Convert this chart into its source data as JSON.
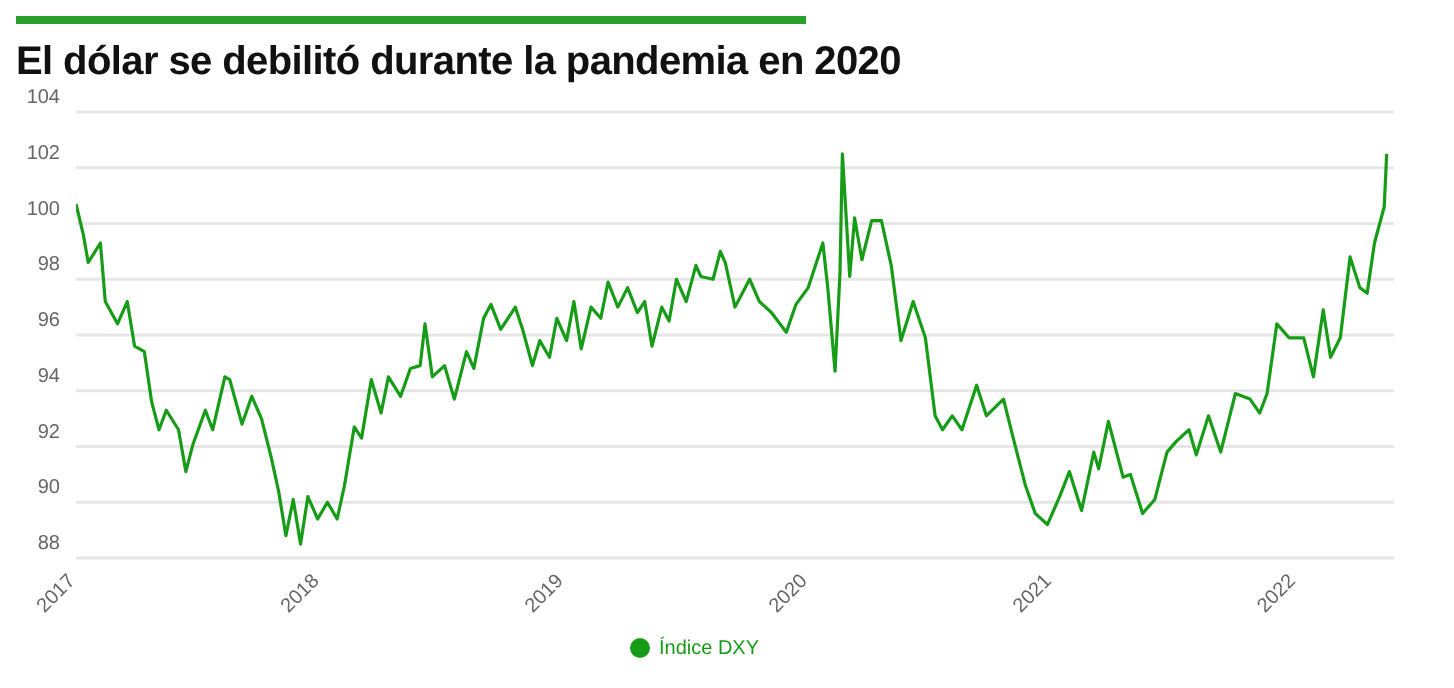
{
  "chart_data": {
    "type": "line",
    "title": "El dólar se debilitó durante la pandemia en 2020",
    "x": [
      2017.0,
      2017.03,
      2017.05,
      2017.1,
      2017.12,
      2017.17,
      2017.21,
      2017.24,
      2017.28,
      2017.31,
      2017.34,
      2017.37,
      2017.42,
      2017.45,
      2017.48,
      2017.53,
      2017.56,
      2017.61,
      2017.63,
      2017.68,
      2017.72,
      2017.76,
      2017.8,
      2017.83,
      2017.86,
      2017.89,
      2017.92,
      2017.95,
      2017.99,
      2018.03,
      2018.07,
      2018.1,
      2018.14,
      2018.17,
      2018.21,
      2018.25,
      2018.28,
      2018.33,
      2018.37,
      2018.41,
      2018.43,
      2018.46,
      2018.51,
      2018.55,
      2018.6,
      2018.63,
      2018.67,
      2018.7,
      2018.74,
      2018.8,
      2018.83,
      2018.87,
      2018.9,
      2018.94,
      2018.97,
      2019.01,
      2019.04,
      2019.07,
      2019.11,
      2019.15,
      2019.18,
      2019.22,
      2019.26,
      2019.3,
      2019.33,
      2019.36,
      2019.4,
      2019.43,
      2019.46,
      2019.5,
      2019.54,
      2019.56,
      2019.61,
      2019.64,
      2019.66,
      2019.7,
      2019.76,
      2019.8,
      2019.85,
      2019.91,
      2019.95,
      2020.0,
      2020.06,
      2020.08,
      2020.11,
      2020.13,
      2020.14,
      2020.17,
      2020.19,
      2020.22,
      2020.26,
      2020.3,
      2020.34,
      2020.38,
      2020.43,
      2020.48,
      2020.52,
      2020.55,
      2020.59,
      2020.63,
      2020.69,
      2020.73,
      2020.8,
      2020.84,
      2020.89,
      2020.93,
      2020.98,
      2021.03,
      2021.07,
      2021.12,
      2021.17,
      2021.19,
      2021.23,
      2021.29,
      2021.32,
      2021.37,
      2021.42,
      2021.47,
      2021.51,
      2021.56,
      2021.59,
      2021.64,
      2021.69,
      2021.75,
      2021.81,
      2021.85,
      2021.88,
      2021.92,
      2021.97,
      2022.03,
      2022.07,
      2022.11,
      2022.14,
      2022.18,
      2022.22,
      2022.26,
      2022.29,
      2022.32,
      2022.36,
      2022.37
    ],
    "series": [
      {
        "name": "Índice DXY",
        "color": "#179c17",
        "values": [
          100.7,
          99.6,
          98.6,
          99.3,
          97.2,
          96.4,
          97.2,
          95.6,
          95.4,
          93.6,
          92.6,
          93.3,
          92.6,
          91.1,
          92.1,
          93.3,
          92.6,
          94.5,
          94.4,
          92.8,
          93.8,
          93.0,
          91.6,
          90.4,
          88.8,
          90.1,
          88.5,
          90.2,
          89.4,
          90.0,
          89.4,
          90.6,
          92.7,
          92.3,
          94.4,
          93.2,
          94.5,
          93.8,
          94.8,
          94.9,
          96.4,
          94.5,
          94.9,
          93.7,
          95.4,
          94.8,
          96.6,
          97.1,
          96.2,
          97.0,
          96.2,
          94.9,
          95.8,
          95.2,
          96.6,
          95.8,
          97.2,
          95.5,
          97.0,
          96.6,
          97.9,
          97.0,
          97.7,
          96.8,
          97.2,
          95.6,
          97.0,
          96.5,
          98.0,
          97.2,
          98.5,
          98.1,
          98.0,
          99.0,
          98.6,
          97.0,
          98.0,
          97.2,
          96.8,
          96.1,
          97.1,
          97.7,
          99.3,
          97.7,
          94.7,
          98.2,
          102.5,
          98.1,
          100.2,
          98.7,
          100.1,
          100.1,
          98.5,
          95.8,
          97.2,
          95.9,
          93.1,
          92.6,
          93.1,
          92.6,
          94.2,
          93.1,
          93.7,
          92.3,
          90.6,
          89.6,
          89.2,
          90.2,
          91.1,
          89.7,
          91.8,
          91.2,
          92.9,
          90.9,
          91.0,
          89.6,
          90.1,
          91.8,
          92.2,
          92.6,
          91.7,
          93.1,
          91.8,
          93.9,
          93.7,
          93.2,
          93.9,
          96.4,
          95.9,
          95.9,
          94.5,
          96.9,
          95.2,
          95.9,
          98.8,
          97.7,
          97.5,
          99.3,
          100.6,
          102.5
        ]
      }
    ],
    "xlim": [
      2017,
      2022.4
    ],
    "xticks": [
      {
        "value": 2017,
        "label": "2017"
      },
      {
        "value": 2018,
        "label": "2018"
      },
      {
        "value": 2019,
        "label": "2019"
      },
      {
        "value": 2020,
        "label": "2020"
      },
      {
        "value": 2021,
        "label": "2021"
      },
      {
        "value": 2022,
        "label": "2022"
      }
    ],
    "ylim": [
      88,
      104
    ],
    "yticks": [
      88,
      90,
      92,
      94,
      96,
      98,
      100,
      102,
      104
    ],
    "grid": "y",
    "legend": "bottom",
    "marker": "none",
    "line_style": "solid"
  }
}
